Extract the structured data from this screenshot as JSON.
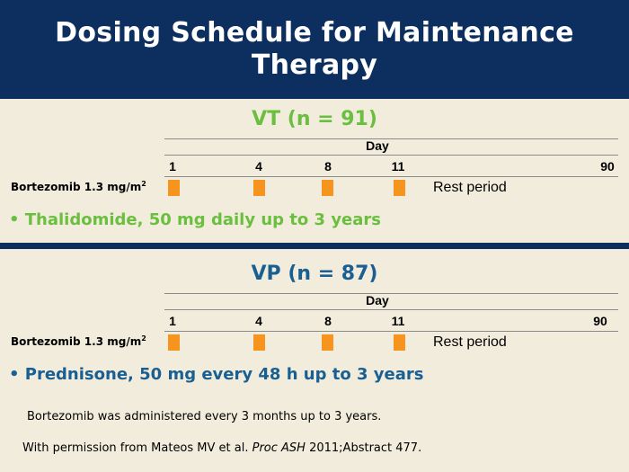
{
  "title": "Dosing Schedule for Maintenance Therapy",
  "sections": [
    {
      "heading": "VT (n = 91)",
      "axis_label": "Day",
      "ticks": [
        "1",
        "4",
        "8",
        "11",
        "90"
      ],
      "drug_label": "Bortezomib 1.3 mg/m",
      "drug_label_sup": "2",
      "rest_label": "Rest period",
      "bullet": "• Thalidomide, 50 mg daily up to 3 years"
    },
    {
      "heading": "VP (n = 87)",
      "axis_label": "Day",
      "ticks": [
        "1",
        "4",
        "8",
        "11",
        "90"
      ],
      "drug_label": "Bortezomib 1.3 mg/m",
      "drug_label_sup": "2",
      "rest_label": "Rest period",
      "bullet": "• Prednisone, 50 mg every 48 h up to 3 years"
    }
  ],
  "footnote1": "Bortezomib was administered every 3 months up to 3 years.",
  "footnote2": {
    "prefix": "With permission from Mateos MV et al. ",
    "journal": "Proc ASH",
    "suffix": " 2011;Abstract 477."
  },
  "colors": {
    "header_bg": "#0d2f5f",
    "page_bg": "#f1ecdc",
    "vt_green": "#6abf3f",
    "vp_blue": "#1a5f92",
    "dose_orange": "#f7941d"
  }
}
